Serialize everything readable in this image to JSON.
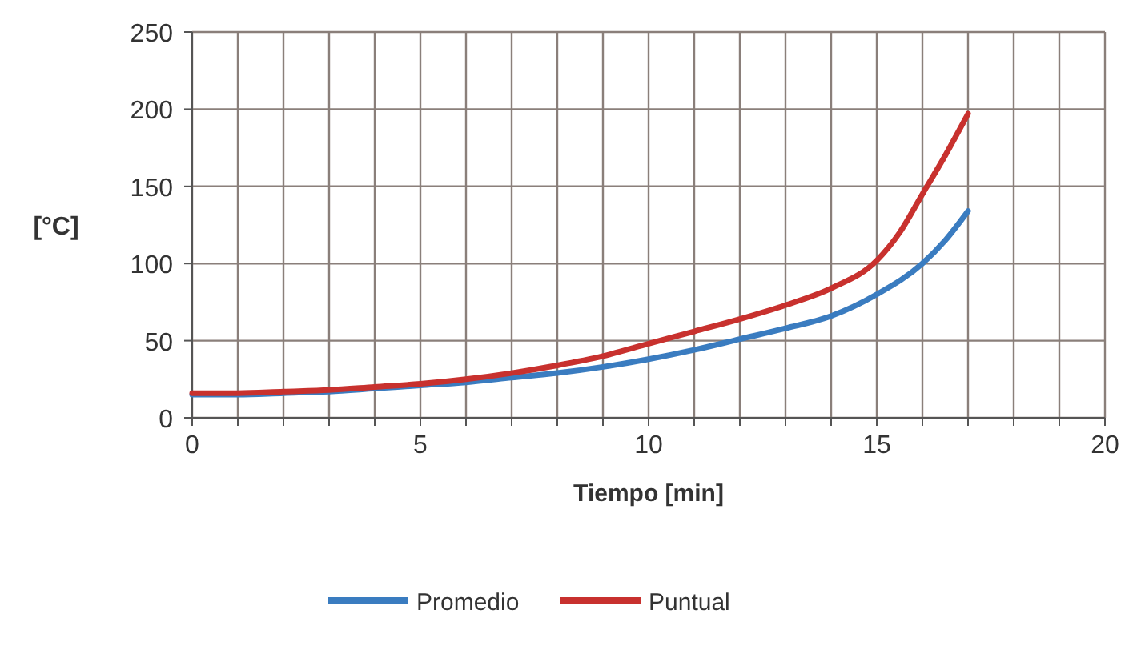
{
  "chart_data": {
    "type": "line",
    "xlabel": "Tiempo [min]",
    "ylabel": "[°C]",
    "xlim": [
      0,
      20
    ],
    "ylim": [
      0,
      250
    ],
    "xticks": [
      0,
      {
        "value": 1,
        "label": null
      },
      {
        "value": 2,
        "label": null
      },
      {
        "value": 3,
        "label": null
      },
      {
        "value": 4,
        "label": null
      },
      5,
      {
        "value": 6,
        "label": null
      },
      {
        "value": 7,
        "label": null
      },
      {
        "value": 8,
        "label": null
      },
      {
        "value": 9,
        "label": null
      },
      10,
      {
        "value": 11,
        "label": null
      },
      {
        "value": 12,
        "label": null
      },
      {
        "value": 13,
        "label": null
      },
      {
        "value": 14,
        "label": null
      },
      15,
      {
        "value": 16,
        "label": null
      },
      {
        "value": 17,
        "label": null
      },
      {
        "value": 18,
        "label": null
      },
      {
        "value": 19,
        "label": null
      },
      20
    ],
    "yticks": [
      0,
      50,
      100,
      150,
      200,
      250
    ],
    "grid": true,
    "legend": "bottom",
    "marker": "none",
    "line_style": "solid",
    "series": [
      {
        "name": "Promedio",
        "color": "#3a7cc0",
        "x": [
          0,
          1,
          2,
          3,
          4,
          5,
          6,
          7,
          8,
          9,
          10,
          11,
          12,
          13,
          14,
          15,
          16,
          16.5,
          17
        ],
        "values": [
          15,
          15,
          16,
          17,
          19,
          21,
          23,
          26,
          29,
          33,
          38,
          44,
          51,
          58,
          66,
          80,
          100,
          115,
          134
        ]
      },
      {
        "name": "Puntual",
        "color": "#c8312e",
        "x": [
          0,
          1,
          2,
          3,
          4,
          5,
          6,
          7,
          8,
          9,
          10,
          11,
          12,
          13,
          14,
          15,
          15.5,
          16,
          16.5,
          17
        ],
        "values": [
          16,
          16,
          17,
          18,
          20,
          22,
          25,
          29,
          34,
          40,
          48,
          56,
          64,
          73,
          84,
          102,
          120,
          145,
          170,
          197
        ]
      }
    ]
  }
}
